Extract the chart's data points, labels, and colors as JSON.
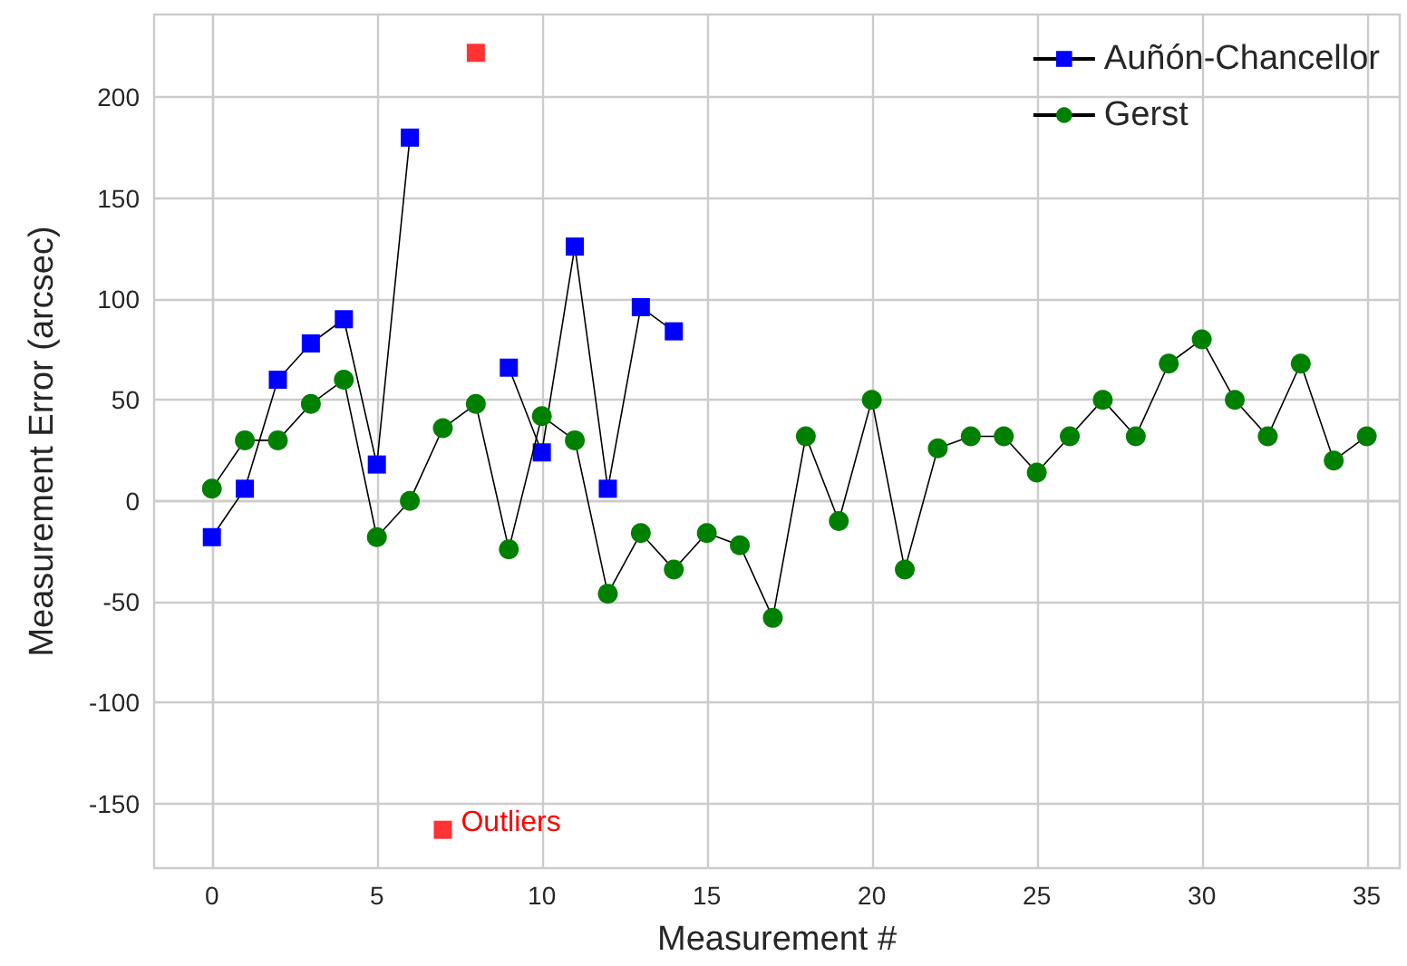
{
  "chart_data": {
    "type": "line",
    "xlabel": "Measurement #",
    "ylabel": "Measurement Error (arcsec)",
    "x": [
      0,
      1,
      2,
      3,
      4,
      5,
      6,
      7,
      8,
      9,
      10,
      11,
      12,
      13,
      14,
      15,
      16,
      17,
      18,
      19,
      20,
      21,
      22,
      23,
      24,
      25,
      26,
      27,
      28,
      29,
      30,
      31,
      32,
      33,
      34,
      35
    ],
    "series": [
      {
        "name": "Auñón-Chancellor",
        "color": "#0000ff",
        "marker": "square",
        "values": [
          -18,
          6,
          60,
          78,
          90,
          18,
          180,
          null,
          null,
          66,
          24,
          126,
          6,
          96,
          84,
          null,
          null,
          null,
          null,
          null,
          null,
          null,
          null,
          null,
          null,
          null,
          null,
          null,
          null,
          null,
          null,
          null,
          null,
          null,
          null,
          null
        ]
      },
      {
        "name": "Gerst",
        "color": "#008000",
        "marker": "circle",
        "values": [
          6,
          30,
          30,
          48,
          60,
          -18,
          0,
          36,
          48,
          -24,
          42,
          30,
          -46,
          -16,
          -34,
          -16,
          -22,
          -58,
          32,
          -10,
          50,
          -34,
          26,
          32,
          32,
          14,
          32,
          50,
          32,
          68,
          80,
          50,
          32,
          68,
          20,
          32
        ]
      },
      {
        "type": "scatter",
        "color": "#ff0000",
        "marker": "square",
        "x": [
          7,
          8
        ],
        "values": [
          -163,
          222
        ]
      }
    ],
    "annotations": [
      {
        "text": "Outliers",
        "x": 7,
        "y": -163
      }
    ],
    "xlim": [
      -1.75,
      36
    ],
    "xticks": [
      0,
      5,
      10,
      15,
      20,
      25,
      30,
      35
    ],
    "ylim": [
      -182,
      241
    ],
    "yticks": [
      -150,
      -100,
      -50,
      0,
      50,
      100,
      150,
      200
    ],
    "grid": true,
    "legend": "top right"
  }
}
